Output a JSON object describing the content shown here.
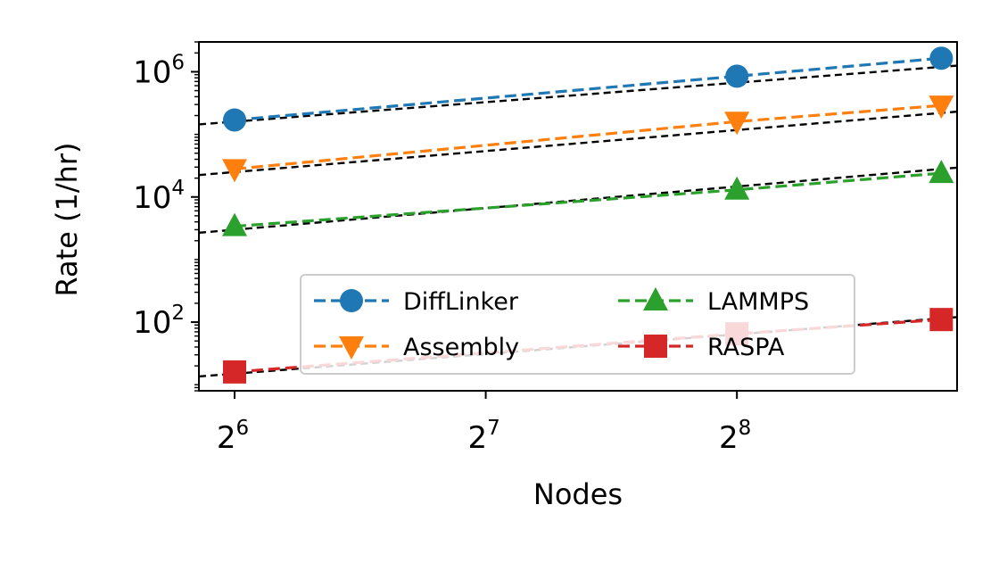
{
  "chart_data": {
    "type": "line",
    "xlabel": "Nodes",
    "ylabel": "Rate (1/hr)",
    "x_scale": "log2",
    "y_scale": "log10",
    "xlim": [
      58,
      470
    ],
    "ylim": [
      8,
      3000000
    ],
    "x_ticks": [
      {
        "base": "2",
        "exp": "6",
        "value": 64
      },
      {
        "base": "2",
        "exp": "7",
        "value": 128
      },
      {
        "base": "2",
        "exp": "8",
        "value": 256
      }
    ],
    "y_ticks": [
      {
        "base": "10",
        "exp": "2",
        "value": 100
      },
      {
        "base": "10",
        "exp": "4",
        "value": 10000
      },
      {
        "base": "10",
        "exp": "6",
        "value": 1000000
      }
    ],
    "x": [
      64,
      256,
      450
    ],
    "series": [
      {
        "name": "DiffLinker",
        "color": "#1f77b4",
        "marker": "circle",
        "values": [
          170000,
          850000,
          1650000
        ],
        "fit": [
          160000,
          1200000
        ]
      },
      {
        "name": "Assembly",
        "color": "#ff7f0e",
        "marker": "triangle-down",
        "values": [
          28000,
          160000,
          290000
        ],
        "fit": [
          25000,
          220000
        ]
      },
      {
        "name": "LAMMPS",
        "color": "#2ca02c",
        "marker": "triangle-up",
        "values": [
          3400,
          13000,
          24000
        ],
        "fit": [
          3000,
          28000
        ]
      },
      {
        "name": "RASPA",
        "color": "#d62728",
        "marker": "square",
        "values": [
          16,
          65,
          110
        ],
        "fit": [
          15,
          115
        ]
      }
    ],
    "fit_line_style": "black dashed",
    "grid": false,
    "legend": {
      "position": "lower center",
      "columns": 2
    }
  }
}
